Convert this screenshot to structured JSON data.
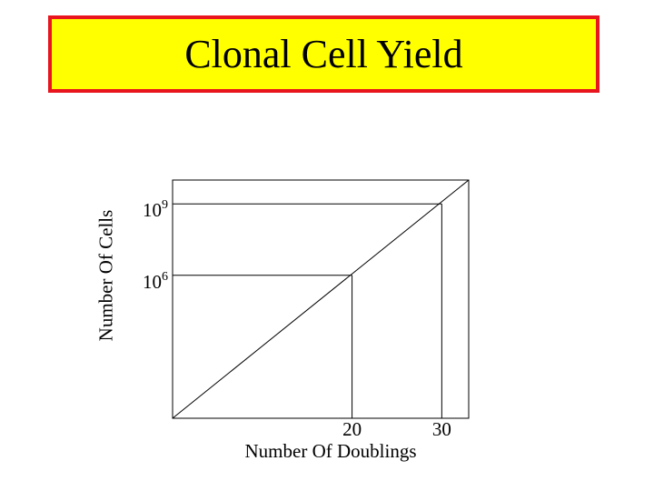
{
  "colors": {
    "title_background": "#ffff00",
    "title_border": "#e8151f",
    "line": "#000000"
  },
  "chart_data": {
    "type": "line",
    "title": "Clonal Cell Yield",
    "xlabel": "Number Of Doublings",
    "ylabel": "Number Of Cells",
    "xlim": [
      0,
      33
    ],
    "ylim_log10": [
      0,
      10
    ],
    "scale_y": "log",
    "grid": false,
    "x_ticks": [
      {
        "label": "20",
        "value": 20
      },
      {
        "label": "30",
        "value": 30
      }
    ],
    "y_ticks": [
      {
        "base": "10",
        "exponent": "6",
        "value": 1000000
      },
      {
        "base": "10",
        "exponent": "9",
        "value": 1000000000
      }
    ],
    "series": [
      {
        "x": [
          0,
          33
        ],
        "y_log10": [
          0,
          10
        ]
      }
    ],
    "reference_points": [
      {
        "x": 20,
        "y": 1000000
      },
      {
        "x": 30,
        "y": 1000000000
      }
    ]
  }
}
